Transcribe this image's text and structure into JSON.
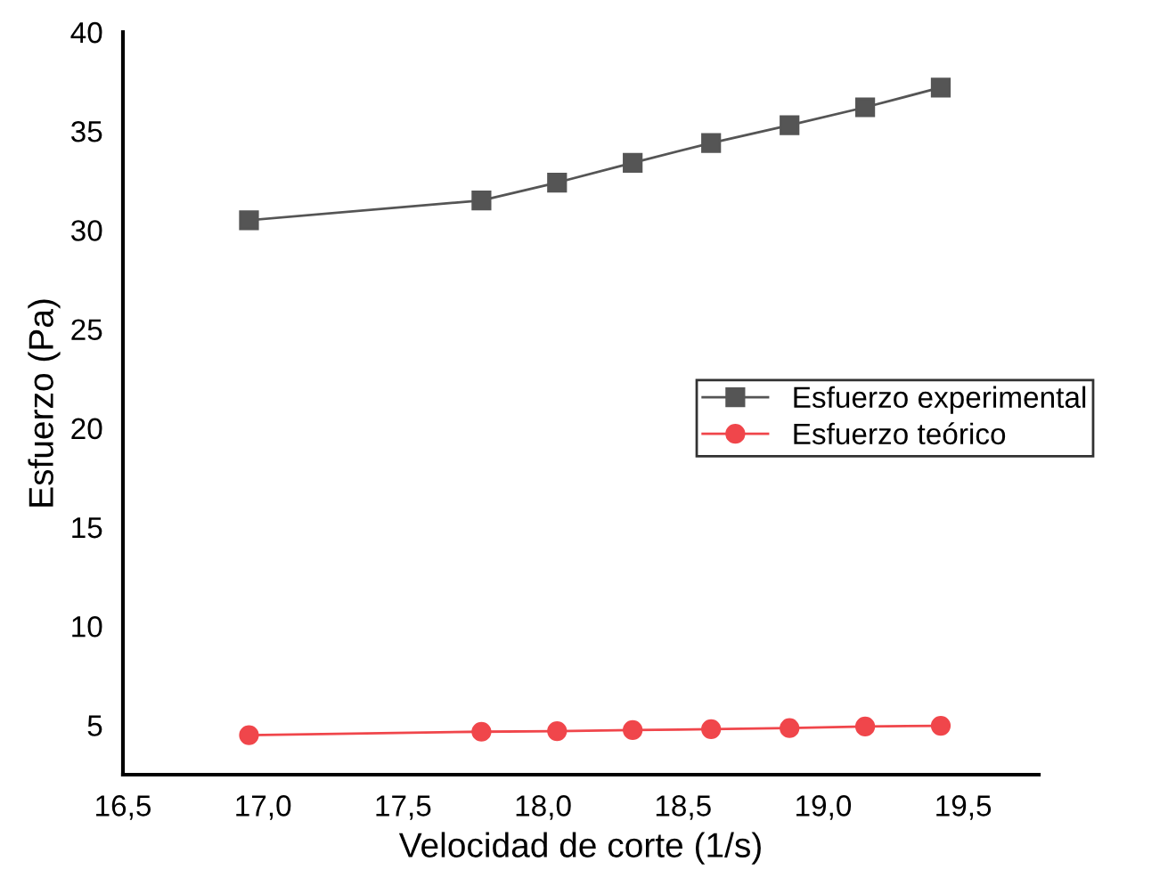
{
  "chart_data": {
    "type": "line",
    "xlabel": "Velocidad de corte (1/s)",
    "ylabel": "Esfuerzo (Pa)",
    "x": [
      16.95,
      17.78,
      18.05,
      18.32,
      18.6,
      18.88,
      19.15,
      19.42
    ],
    "series": [
      {
        "name": "Esfuerzo experimental",
        "color": "#555555",
        "marker": "square",
        "values": [
          30.5,
          31.5,
          32.4,
          33.4,
          34.4,
          35.3,
          36.2,
          37.2
        ]
      },
      {
        "name": "Esfuerzo teórico",
        "color": "#f0464b",
        "marker": "circle",
        "values": [
          4.5,
          4.67,
          4.7,
          4.75,
          4.8,
          4.85,
          4.93,
          4.97
        ]
      }
    ],
    "xlim": [
      16.5,
      19.77
    ],
    "ylim": [
      2.5,
      40
    ],
    "xticks": [
      {
        "value": 16.5,
        "label": "16,5"
      },
      {
        "value": 17.0,
        "label": "17,0"
      },
      {
        "value": 17.5,
        "label": "17,5"
      },
      {
        "value": 18.0,
        "label": "18,0"
      },
      {
        "value": 18.5,
        "label": "18,5"
      },
      {
        "value": 19.0,
        "label": "19,0"
      },
      {
        "value": 19.5,
        "label": "19,5"
      }
    ],
    "yticks": [
      5,
      10,
      15,
      20,
      25,
      30,
      35,
      40
    ],
    "grid": false,
    "legend": "right",
    "line_style": "solid"
  }
}
